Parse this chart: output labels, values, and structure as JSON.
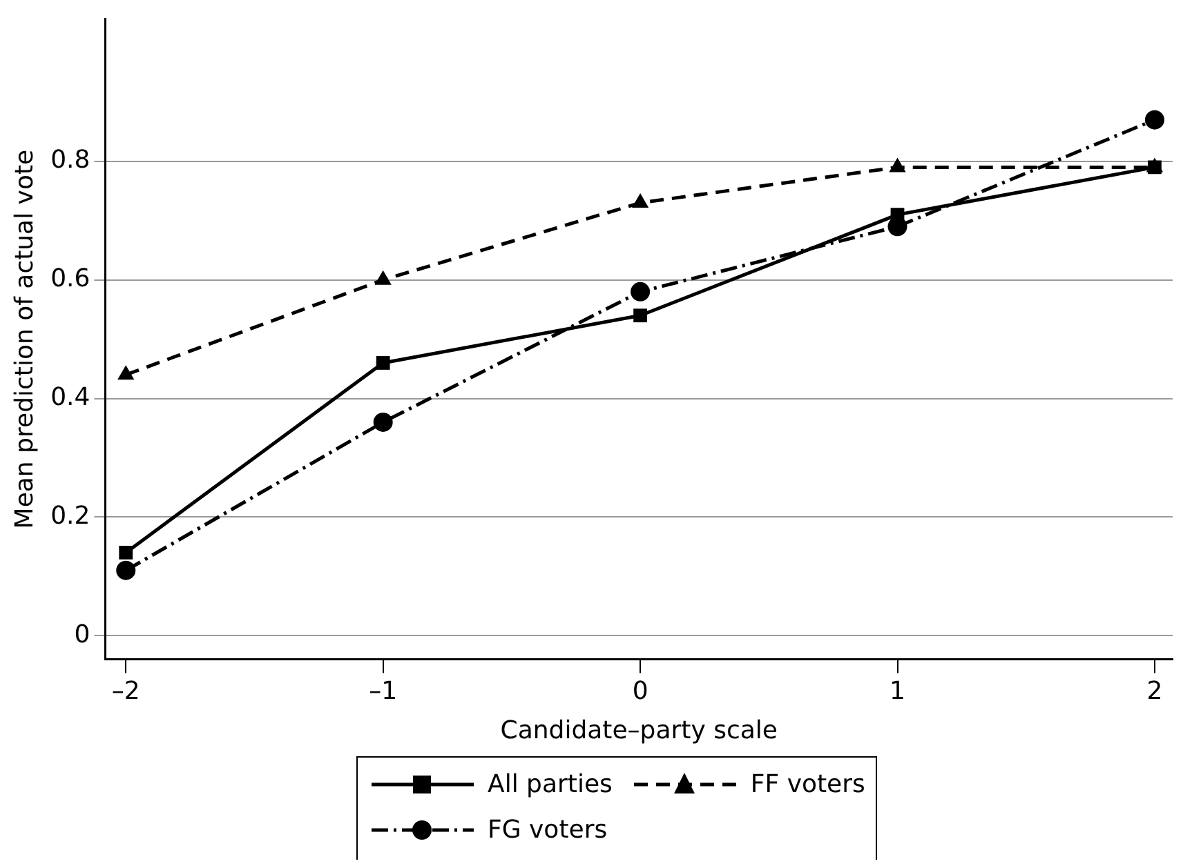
{
  "chart_data": {
    "type": "line",
    "xlabel": "Candidate–party scale",
    "ylabel": "Mean prediction of actual vote",
    "x": [
      -2,
      -1,
      0,
      1,
      2
    ],
    "xlim": [
      -2.08,
      2.07
    ],
    "xticks": [
      {
        "value": -2,
        "label": "–2"
      },
      {
        "value": -1,
        "label": "–1"
      },
      0,
      1,
      2
    ],
    "ylim": [
      -0.04,
      1.04
    ],
    "yticks": [
      0,
      0.2,
      0.4,
      0.6,
      0.8
    ],
    "grid": "y",
    "legend": "bottom",
    "series": [
      {
        "name": "All parties",
        "color": "#000000",
        "marker": "square",
        "line_style": "solid",
        "values": [
          0.14,
          0.46,
          0.54,
          0.71,
          0.79
        ]
      },
      {
        "name": "FF voters",
        "color": "#000000",
        "marker": "triangle",
        "line_style": "dashed",
        "values": [
          0.44,
          0.6,
          0.73,
          0.79,
          0.79
        ]
      },
      {
        "name": "FG voters",
        "color": "#000000",
        "marker": "circle",
        "line_style": "dashdot",
        "values": [
          0.11,
          0.36,
          0.58,
          0.69,
          0.87
        ]
      }
    ]
  }
}
